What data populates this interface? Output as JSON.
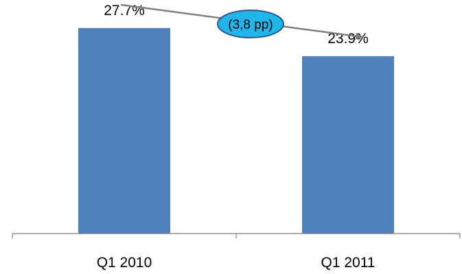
{
  "chart_data": {
    "type": "bar",
    "categories": [
      "Q1 2010",
      "Q1 2011"
    ],
    "values": [
      27.7,
      23.9
    ],
    "value_labels": [
      "27.7%",
      "23.9%"
    ],
    "title": "",
    "xlabel": "",
    "ylabel": "",
    "ylim": [
      0,
      30
    ],
    "grid": false,
    "legend": "none",
    "annotation": {
      "text": "(3,8 pp)",
      "type": "arrow-callout"
    },
    "colors": {
      "bar": "#4f81bd",
      "arrow": "#7f7f7f",
      "callout_fill": "#1fb7ea",
      "callout_stroke": "#2f5597",
      "axis": "#7f7f7f"
    }
  }
}
